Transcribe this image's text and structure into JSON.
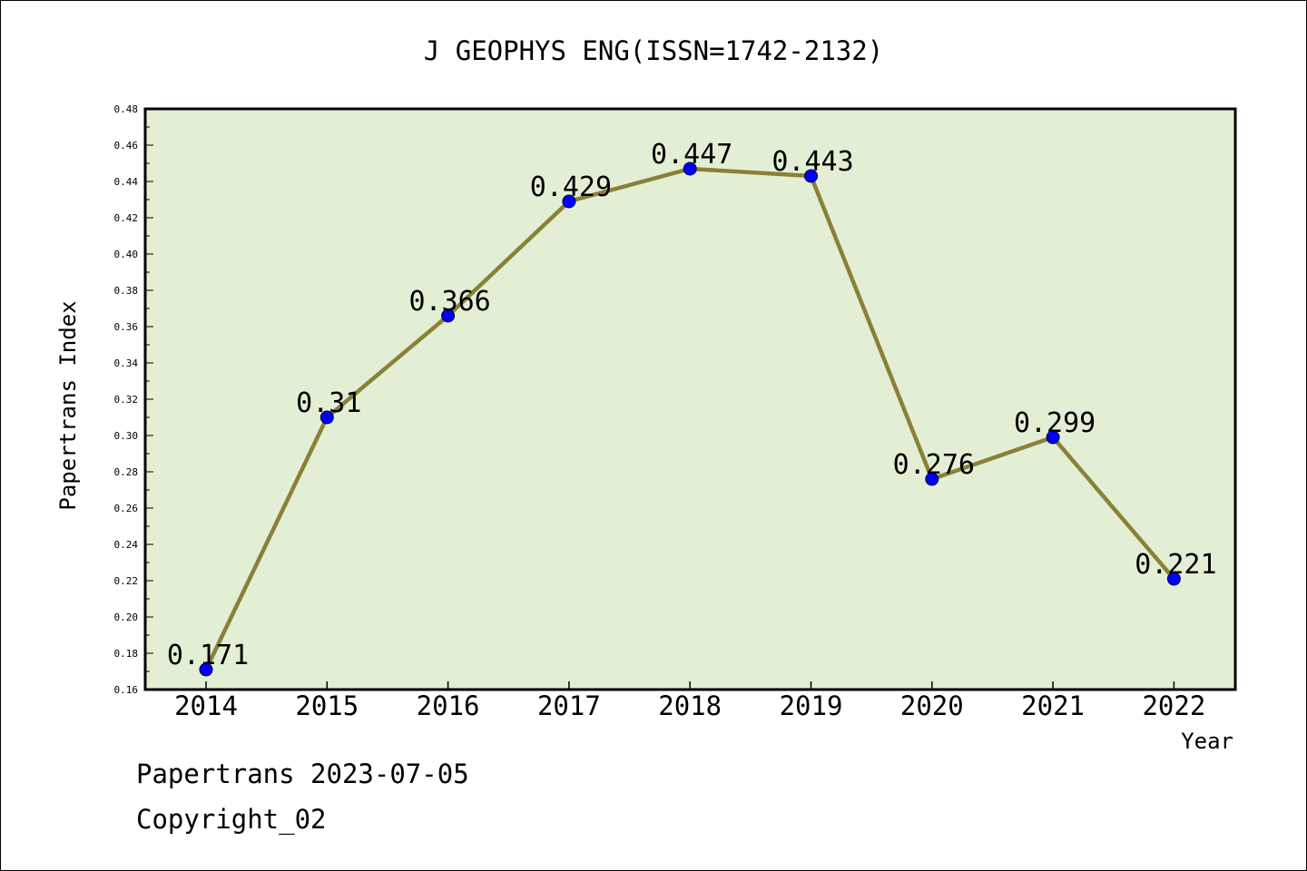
{
  "chart_data": {
    "type": "line",
    "title": "J GEOPHYS ENG(ISSN=1742-2132)",
    "xlabel": "Year",
    "ylabel": "Papertrans Index",
    "categories": [
      "2014",
      "2015",
      "2016",
      "2017",
      "2018",
      "2019",
      "2020",
      "2021",
      "2022"
    ],
    "series": [
      {
        "values": [
          0.171,
          0.31,
          0.366,
          0.429,
          0.447,
          0.443,
          0.276,
          0.299,
          0.221
        ],
        "data_labels": [
          "0.171",
          "0.31",
          "0.366",
          "0.429",
          "0.447",
          "0.443",
          "0.276",
          "0.299",
          "0.221"
        ]
      }
    ],
    "ylim": [
      0.16,
      0.48
    ],
    "yticks": [
      "0.16",
      "0.18",
      "0.20",
      "0.22",
      "0.24",
      "0.26",
      "0.28",
      "0.30",
      "0.32",
      "0.34",
      "0.36",
      "0.38",
      "0.40",
      "0.42",
      "0.44",
      "0.46",
      "0.48"
    ],
    "grid": false,
    "legend": "none",
    "colors": {
      "plot_background": "#e2efd5",
      "line": "#8b8038",
      "marker": "#0000ff"
    }
  },
  "footer": {
    "date_line": "Papertrans 2023-07-05",
    "copyright": "Copyright_02"
  }
}
